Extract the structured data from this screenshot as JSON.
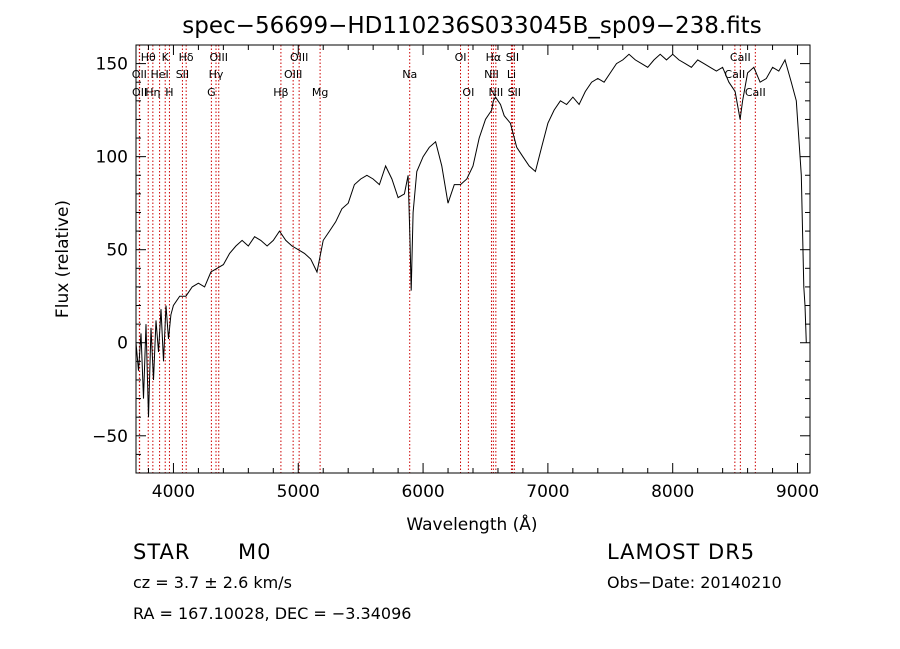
{
  "chart_data": {
    "type": "line",
    "title": "spec−56699−HD110236S033045B_sp09−238.fits",
    "xlabel": "Wavelength (Å)",
    "ylabel": "Flux (relative)",
    "xlim": [
      3700,
      9100
    ],
    "ylim": [
      -70,
      160
    ],
    "xticks": [
      4000,
      5000,
      6000,
      7000,
      8000,
      9000
    ],
    "xtick_labels": [
      "4000",
      "5000",
      "6000",
      "7000",
      "8000",
      "9000"
    ],
    "yticks": [
      -50,
      0,
      50,
      100,
      150
    ],
    "ytick_labels": [
      "−50",
      "0",
      "50",
      "100",
      "150"
    ],
    "grid": false,
    "series": [
      {
        "x": [
          3700,
          3720,
          3740,
          3760,
          3780,
          3800,
          3820,
          3840,
          3860,
          3880,
          3900,
          3920,
          3940,
          3960,
          3980,
          4000,
          4050,
          4100,
          4150,
          4200,
          4250,
          4300,
          4350,
          4400,
          4450,
          4500,
          4550,
          4600,
          4650,
          4700,
          4750,
          4800,
          4850,
          4900,
          4950,
          5000,
          5050,
          5100,
          5150,
          5200,
          5250,
          5300,
          5350,
          5400,
          5450,
          5500,
          5550,
          5600,
          5650,
          5700,
          5750,
          5800,
          5850,
          5880,
          5895,
          5905,
          5920,
          5950,
          6000,
          6050,
          6100,
          6150,
          6200,
          6250,
          6300,
          6350,
          6400,
          6450,
          6500,
          6550,
          6563,
          6580,
          6620,
          6650,
          6700,
          6750,
          6800,
          6850,
          6900,
          6950,
          7000,
          7050,
          7100,
          7150,
          7200,
          7250,
          7300,
          7350,
          7400,
          7450,
          7500,
          7550,
          7600,
          7650,
          7700,
          7750,
          7800,
          7850,
          7900,
          7950,
          8000,
          8050,
          8100,
          8150,
          8200,
          8250,
          8300,
          8350,
          8400,
          8450,
          8500,
          8540,
          8560,
          8600,
          8650,
          8700,
          8750,
          8800,
          8850,
          8900,
          8950,
          8990,
          9010,
          9030,
          9050,
          9060,
          9070
        ],
        "y": [
          0,
          -15,
          5,
          -30,
          10,
          -40,
          8,
          -20,
          12,
          -5,
          18,
          -10,
          20,
          2,
          15,
          20,
          25,
          25,
          30,
          32,
          30,
          38,
          40,
          42,
          48,
          52,
          55,
          52,
          57,
          55,
          52,
          55,
          60,
          55,
          52,
          50,
          48,
          45,
          38,
          55,
          60,
          65,
          72,
          75,
          85,
          88,
          90,
          88,
          85,
          95,
          88,
          78,
          80,
          90,
          55,
          28,
          70,
          92,
          100,
          105,
          108,
          95,
          75,
          85,
          85,
          88,
          95,
          110,
          120,
          125,
          130,
          132,
          128,
          122,
          118,
          105,
          100,
          95,
          92,
          105,
          118,
          125,
          130,
          128,
          132,
          128,
          135,
          140,
          142,
          140,
          145,
          150,
          152,
          155,
          152,
          150,
          148,
          152,
          155,
          152,
          155,
          152,
          150,
          148,
          152,
          150,
          148,
          146,
          148,
          140,
          135,
          120,
          130,
          145,
          148,
          140,
          142,
          148,
          146,
          152,
          140,
          130,
          110,
          90,
          30,
          20,
          0
        ]
      }
    ],
    "line_markers": [
      {
        "label": "Hθ",
        "wavelength": 3798,
        "row": 0
      },
      {
        "label": "K",
        "wavelength": 3934,
        "row": 0
      },
      {
        "label": "Hδ",
        "wavelength": 4102,
        "row": 0
      },
      {
        "label": "OIII",
        "wavelength": 4363,
        "row": 0
      },
      {
        "label": "OIII",
        "wavelength": 5007,
        "row": 0
      },
      {
        "label": "OI",
        "wavelength": 6300,
        "row": 0
      },
      {
        "label": "Hα",
        "wavelength": 6563,
        "row": 0
      },
      {
        "label": "SII",
        "wavelength": 6716,
        "row": 0
      },
      {
        "label": "CaII",
        "wavelength": 8542,
        "row": 0
      },
      {
        "label": "OII",
        "wavelength": 3727,
        "row": 1
      },
      {
        "label": "HeI",
        "wavelength": 3889,
        "row": 1
      },
      {
        "label": "SII",
        "wavelength": 4072,
        "row": 1
      },
      {
        "label": "Hγ",
        "wavelength": 4341,
        "row": 1
      },
      {
        "label": "OIII",
        "wavelength": 4959,
        "row": 1
      },
      {
        "label": "Na",
        "wavelength": 5893,
        "row": 1
      },
      {
        "label": "NII",
        "wavelength": 6548,
        "row": 1
      },
      {
        "label": "Li",
        "wavelength": 6708,
        "row": 1
      },
      {
        "label": "CaII",
        "wavelength": 8498,
        "row": 1
      },
      {
        "label": "OII",
        "wavelength": 3729,
        "row": 2
      },
      {
        "label": "Hη",
        "wavelength": 3835,
        "row": 2
      },
      {
        "label": "H",
        "wavelength": 3968,
        "row": 2
      },
      {
        "label": "G",
        "wavelength": 4304,
        "row": 2
      },
      {
        "label": "Hβ",
        "wavelength": 4861,
        "row": 2
      },
      {
        "label": "Mg",
        "wavelength": 5175,
        "row": 2
      },
      {
        "label": "OI",
        "wavelength": 6363,
        "row": 2
      },
      {
        "label": "NII",
        "wavelength": 6583,
        "row": 2
      },
      {
        "label": "SII",
        "wavelength": 6731,
        "row": 2
      },
      {
        "label": "CaII",
        "wavelength": 8662,
        "row": 2
      }
    ],
    "line_marker_color": "#cc0000",
    "line_color": "#000000"
  },
  "info": {
    "object_type": "STAR",
    "subclass": "M0",
    "survey": "LAMOST  DR5",
    "cz": "cz = 3.7 ± 2.6 km/s",
    "obs_date": "Obs−Date: 20140210",
    "coords": "RA = 167.10028, DEC =  −3.34096"
  }
}
